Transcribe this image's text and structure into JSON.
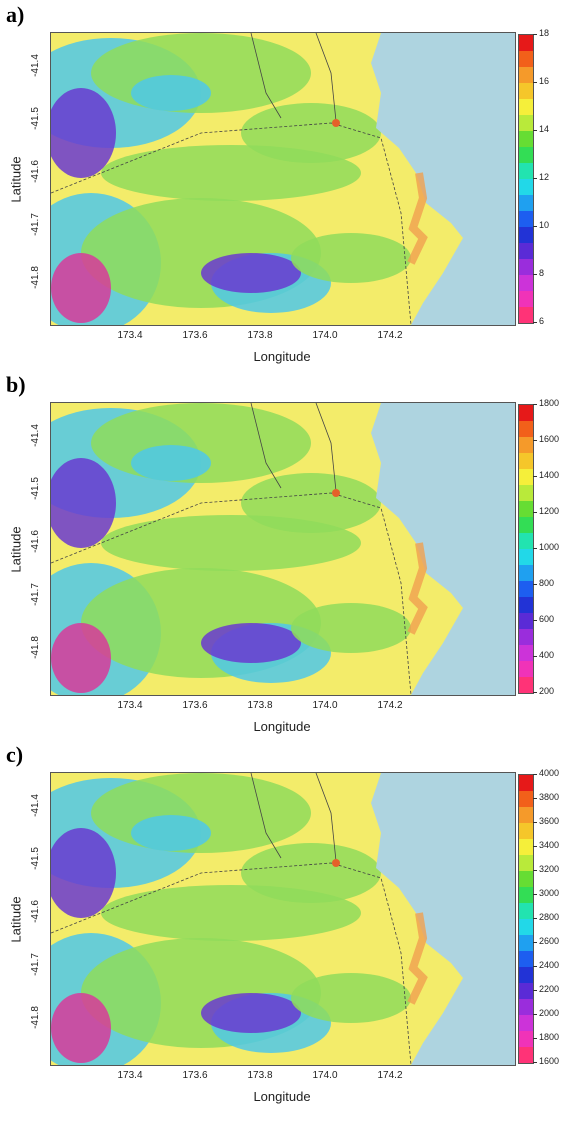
{
  "panels": [
    {
      "label": "a)",
      "xlabel": "Longitude",
      "ylabel": "Latitude",
      "xticks": [
        "173.4",
        "173.6",
        "173.8",
        "174.0",
        "174.2"
      ],
      "yticks": [
        "-41.4",
        "-41.5",
        "-41.6",
        "-41.7",
        "-41.8"
      ],
      "legend_ticks": [
        "18",
        "16",
        "14",
        "12",
        "10",
        "8",
        "6"
      ],
      "legend_colors": [
        "#e61919",
        "#f2601a",
        "#f59a2a",
        "#f5c62a",
        "#f5ef3a",
        "#b9ea3a",
        "#66dd33",
        "#33dd55",
        "#22e3b0",
        "#22d8e8",
        "#1fa0f0",
        "#1d5ef0",
        "#2233d6",
        "#5a2bd6",
        "#9a2ddc",
        "#cc33d9",
        "#f033b8",
        "#ff3377"
      ]
    },
    {
      "label": "b)",
      "xlabel": "Longitude",
      "ylabel": "Latitude",
      "xticks": [
        "173.4",
        "173.6",
        "173.8",
        "174.0",
        "174.2"
      ],
      "yticks": [
        "-41.4",
        "-41.5",
        "-41.6",
        "-41.7",
        "-41.8"
      ],
      "legend_ticks": [
        "1800",
        "1600",
        "1400",
        "1200",
        "1000",
        "800",
        "600",
        "400",
        "200"
      ],
      "legend_colors": [
        "#e61919",
        "#f2601a",
        "#f59a2a",
        "#f5c62a",
        "#f5ef3a",
        "#b9ea3a",
        "#66dd33",
        "#33dd55",
        "#22e3b0",
        "#22d8e8",
        "#1fa0f0",
        "#1d5ef0",
        "#2233d6",
        "#5a2bd6",
        "#9a2ddc",
        "#cc33d9",
        "#f033b8",
        "#ff3377"
      ]
    },
    {
      "label": "c)",
      "xlabel": "Longitude",
      "ylabel": "Latitude",
      "xticks": [
        "173.4",
        "173.6",
        "173.8",
        "174.0",
        "174.2"
      ],
      "yticks": [
        "-41.4",
        "-41.5",
        "-41.6",
        "-41.7",
        "-41.8"
      ],
      "legend_ticks": [
        "4000",
        "3800",
        "3600",
        "3400",
        "3200",
        "3000",
        "2800",
        "2600",
        "2400",
        "2200",
        "2000",
        "1800",
        "1600"
      ],
      "legend_colors": [
        "#e61919",
        "#f2601a",
        "#f59a2a",
        "#f5c62a",
        "#f5ef3a",
        "#b9ea3a",
        "#66dd33",
        "#33dd55",
        "#22e3b0",
        "#22d8e8",
        "#1fa0f0",
        "#1d5ef0",
        "#2233d6",
        "#5a2bd6",
        "#9a2ddc",
        "#cc33d9",
        "#f033b8",
        "#ff3377"
      ]
    }
  ],
  "colors": {
    "sea": "#aed4e0",
    "lowland": "#f3ec6a",
    "coast": "#f0a050",
    "mid": "#8fdc5a",
    "high": "#4fc8e8",
    "peak": "#6a3ad0",
    "extreme": "#d83a9a",
    "road": "#444444"
  }
}
